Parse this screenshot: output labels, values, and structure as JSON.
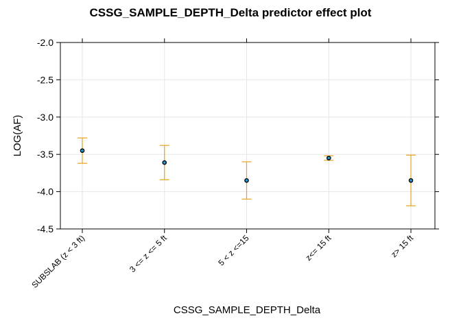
{
  "chart_data": {
    "type": "scatter",
    "title": "CSSG_SAMPLE_DEPTH_Delta predictor effect plot",
    "xlabel": "CSSG_SAMPLE_DEPTH_Delta",
    "ylabel": "LOG(AF)",
    "categories": [
      "SUBSLAB (z < 3 ft)",
      "3 <= z <= 5 ft",
      "5 < z <=15",
      "z<= 15 ft",
      "z> 15 ft"
    ],
    "values": [
      -3.45,
      -3.61,
      -3.85,
      -3.55,
      -3.85
    ],
    "lower": [
      -3.62,
      -3.84,
      -4.1,
      -3.58,
      -4.19
    ],
    "upper": [
      -3.28,
      -3.38,
      -3.6,
      -3.52,
      -3.51
    ],
    "ylim": [
      -4.5,
      -2.0
    ],
    "yticks": [
      -2.0,
      -2.5,
      -3.0,
      -3.5,
      -4.0,
      -4.5
    ],
    "ytick_labels": [
      "-2.0",
      "-2.5",
      "-3.0",
      "-3.5",
      "-4.0",
      "-4.5"
    ],
    "grid": true,
    "colors": {
      "point": "#1f9bd7",
      "errorbar": "#e6a317",
      "grid": "#e6e6e6"
    }
  }
}
